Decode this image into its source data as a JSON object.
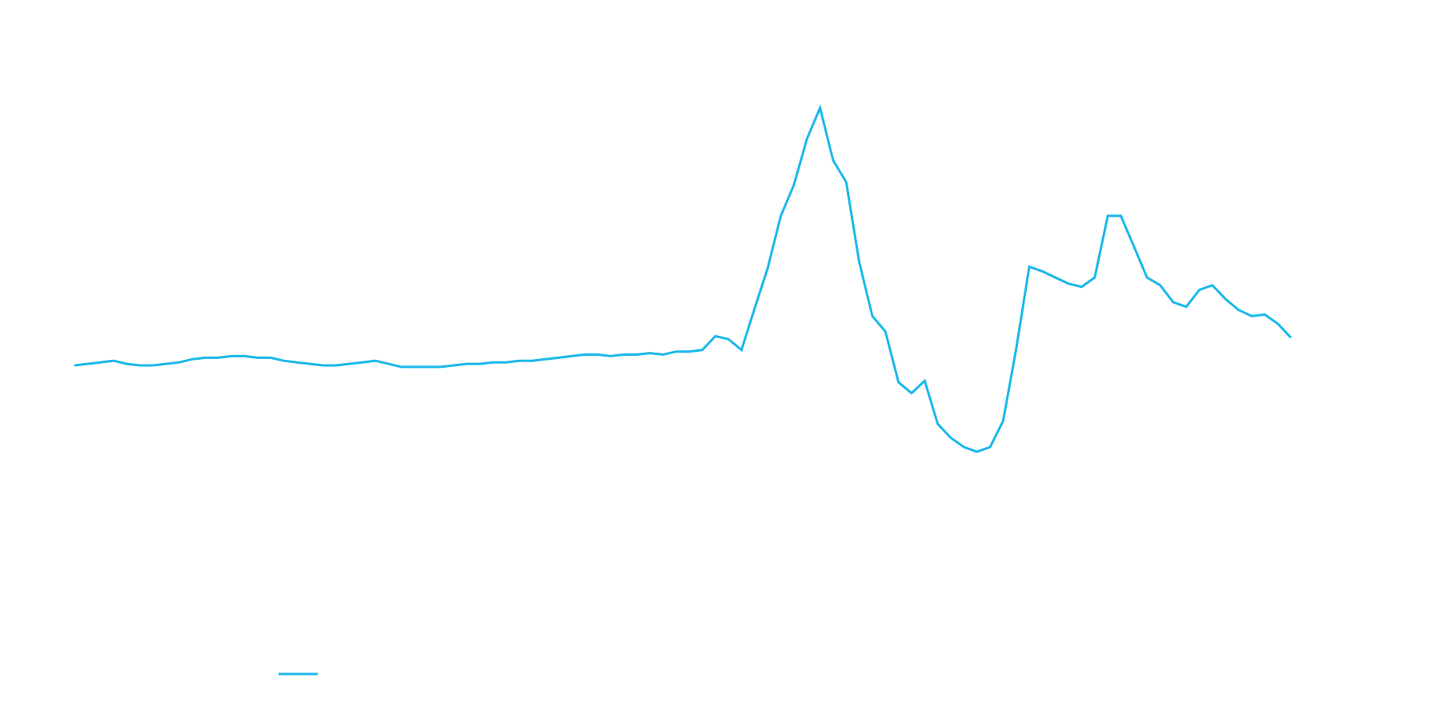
{
  "chart_data": {
    "type": "line",
    "title": "",
    "xlabel": "",
    "ylabel": "",
    "grid": false,
    "legend_position": "bottom-left",
    "series": [
      {
        "name": "",
        "color": "#1ab8ea",
        "values": [
          49.3,
          49.4,
          49.5,
          49.6,
          49.4,
          49.3,
          49.3,
          49.4,
          49.5,
          49.7,
          49.8,
          49.8,
          49.9,
          49.9,
          49.8,
          49.8,
          49.6,
          49.5,
          49.4,
          49.3,
          49.3,
          49.4,
          49.5,
          49.6,
          49.4,
          49.2,
          49.2,
          49.2,
          49.2,
          49.3,
          49.4,
          49.4,
          49.5,
          49.5,
          49.6,
          49.6,
          49.7,
          49.8,
          49.9,
          50.0,
          50.0,
          49.9,
          50.0,
          50.0,
          50.1,
          50.0,
          50.2,
          50.2,
          50.3,
          51.2,
          51.0,
          50.3,
          53.0,
          55.6,
          59.0,
          61.0,
          64.0,
          66.0,
          62.6,
          61.2,
          56.0,
          52.5,
          51.5,
          48.2,
          47.5,
          48.3,
          45.5,
          44.6,
          44.0,
          43.7,
          44.0,
          45.7,
          50.4,
          55.7,
          55.4,
          55.0,
          54.6,
          54.4,
          55.0,
          59.0,
          59.0,
          57.0,
          55.0,
          54.5,
          53.4,
          53.1,
          54.2,
          54.5,
          53.6,
          52.9,
          52.5,
          52.6,
          52.0,
          51.1
        ]
      }
    ]
  }
}
